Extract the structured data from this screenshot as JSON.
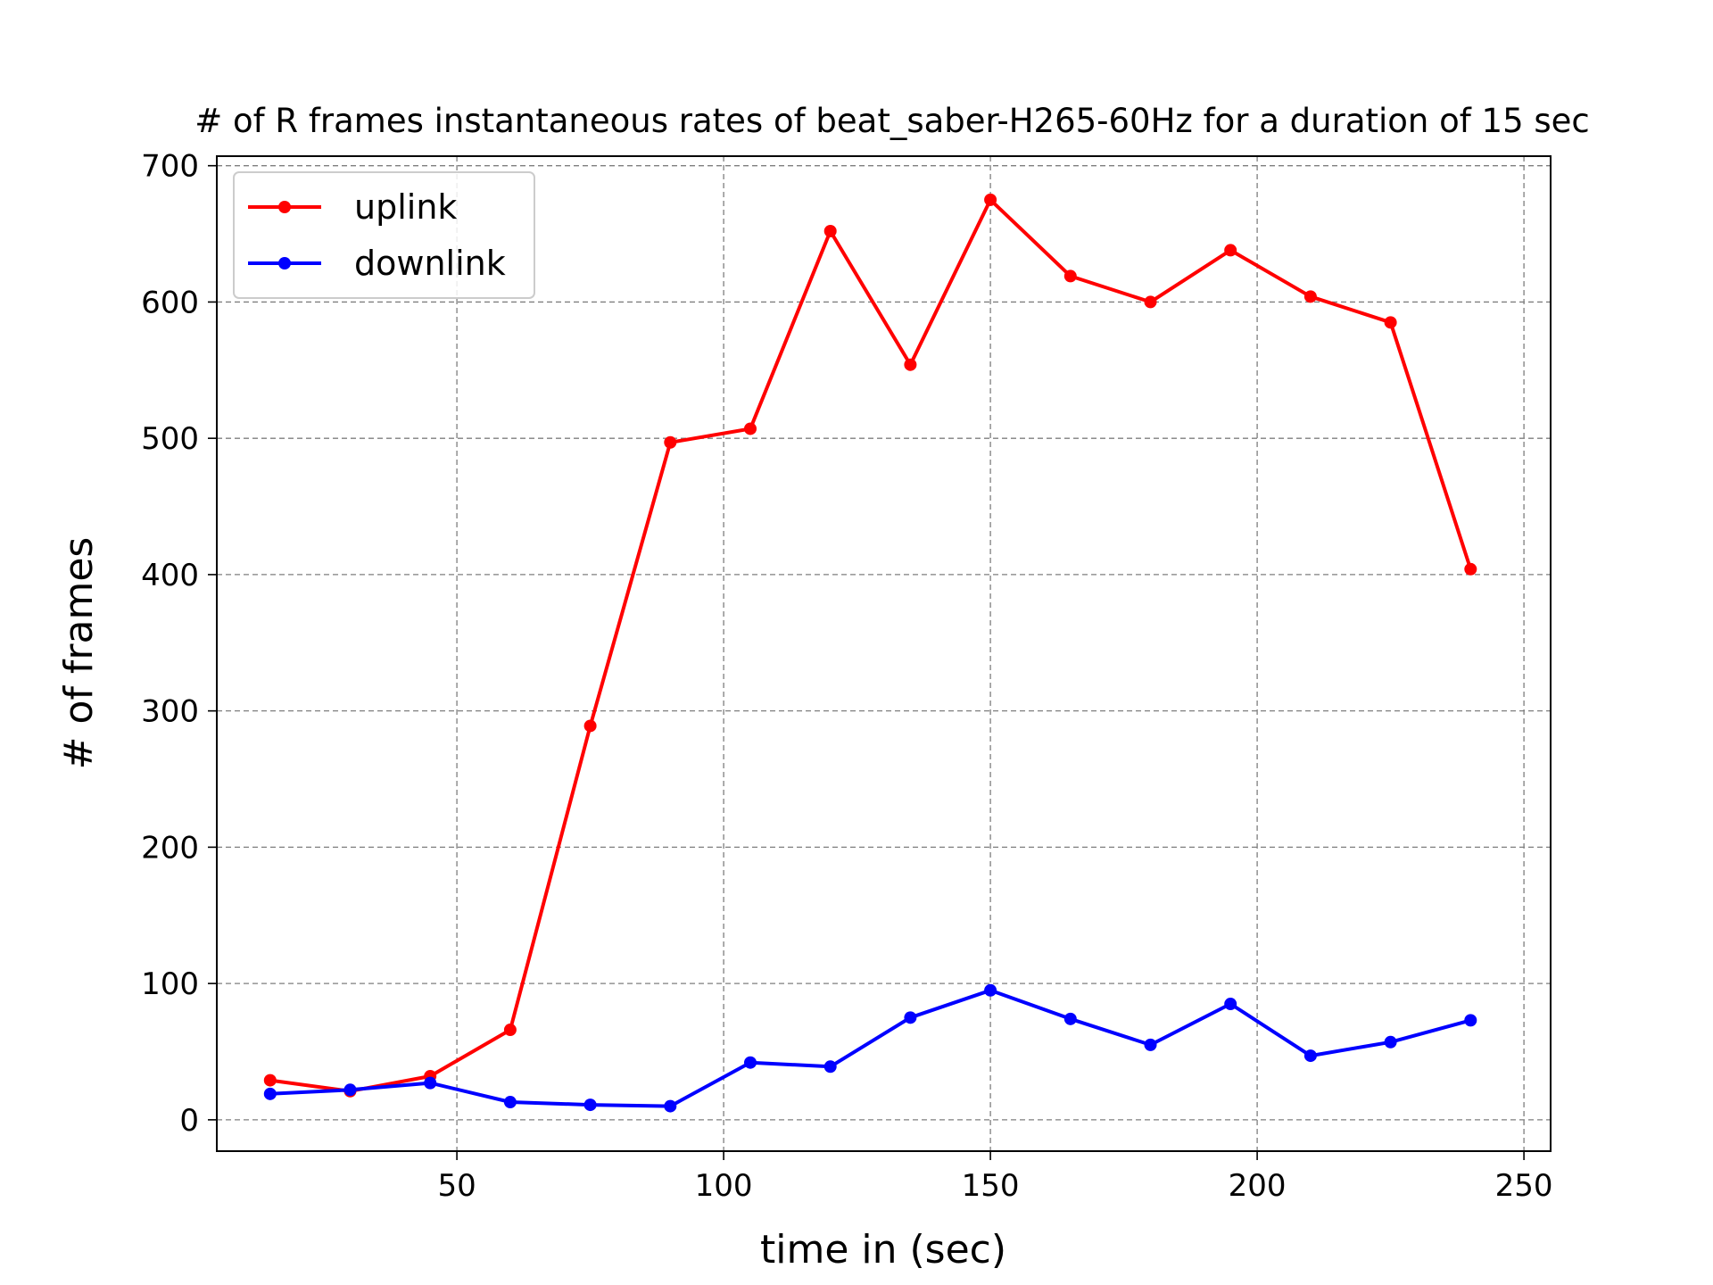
{
  "chart_data": {
    "type": "line",
    "title": "# of R frames instantaneous rates of beat_saber-H265-60Hz for a duration of 15 sec",
    "xlabel": "time in (sec)",
    "ylabel": "# of frames",
    "xlim": [
      5,
      255
    ],
    "ylim": [
      -23,
      707
    ],
    "xticks": [
      50,
      100,
      150,
      200,
      250
    ],
    "yticks": [
      0,
      100,
      200,
      300,
      400,
      500,
      600,
      700
    ],
    "grid": true,
    "legend": "top-left",
    "x": [
      15,
      30,
      45,
      60,
      75,
      90,
      105,
      120,
      135,
      150,
      165,
      180,
      195,
      210,
      225,
      240
    ],
    "series": [
      {
        "name": "uplink",
        "color": "#ff0000",
        "values": [
          29,
          21,
          32,
          66,
          289,
          497,
          507,
          652,
          554,
          675,
          619,
          600,
          638,
          604,
          585,
          404
        ]
      },
      {
        "name": "downlink",
        "color": "#0000ff",
        "values": [
          19,
          22,
          27,
          13,
          11,
          10,
          42,
          39,
          75,
          95,
          74,
          55,
          85,
          47,
          57,
          73
        ]
      }
    ]
  }
}
